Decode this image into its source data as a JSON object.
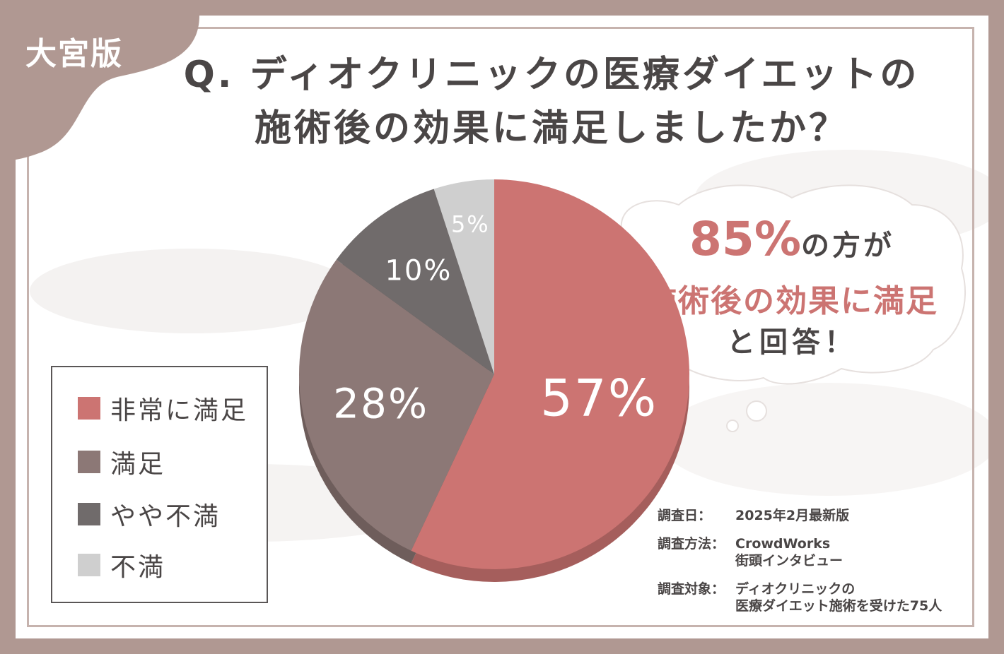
{
  "edition_label": "大宮版",
  "title": {
    "line1": "Q. ディオクリニックの医療ダイエットの",
    "line2": "施術後の効果に満足しましたか？"
  },
  "callout": {
    "percent": "85%",
    "percent_suffix": "の方が",
    "line2": "施術後の効果に満足",
    "line3": "と回答！"
  },
  "survey": {
    "date_label": "調査日：",
    "date_value": "2025年2月最新版",
    "method_label": "調査方法：",
    "method_value_1": "CrowdWorks",
    "method_value_2": "街頭インタビュー",
    "target_label": "調査対象：",
    "target_value_1": "ディオクリニックの",
    "target_value_2": "医療ダイエット施術を受けた75人"
  },
  "colors": {
    "background": "#b09892",
    "very_satisfied": "#cc7472",
    "satisfied": "#8c7876",
    "somewhat_dissatisfied": "#706b6b",
    "dissatisfied": "#cfcfcf",
    "accent_text": "#cc7472",
    "body_text": "#4a4646"
  },
  "chart_data": {
    "type": "pie",
    "categories": [
      "非常に満足",
      "満足",
      "やや不満",
      "不満"
    ],
    "values": [
      57,
      28,
      10,
      5
    ],
    "value_labels": [
      "57%",
      "28%",
      "10%",
      "5%"
    ],
    "legend_position": "left"
  }
}
